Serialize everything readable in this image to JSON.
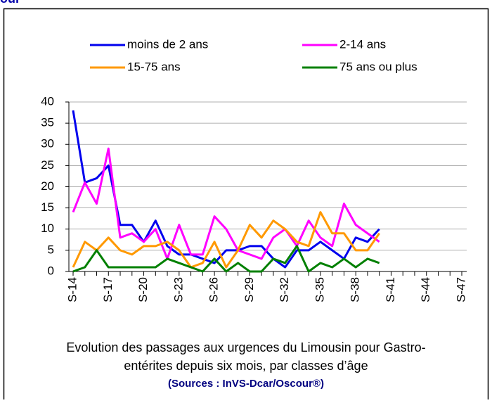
{
  "header": "our",
  "chart_data": {
    "type": "line",
    "categories": [
      "S-14",
      null,
      null,
      "S-17",
      null,
      null,
      "S-20",
      null,
      null,
      "S-23",
      null,
      null,
      "S-26",
      null,
      null,
      "S-29",
      null,
      null,
      "S-32",
      null,
      null,
      "S-35",
      null,
      null,
      "S-38",
      null,
      null,
      "S-41",
      null,
      null,
      "S-44",
      null,
      null,
      "S-47"
    ],
    "series": [
      {
        "name": "moins de 2 ans",
        "color": "#0000ee",
        "values": [
          38,
          21,
          22,
          25,
          11,
          11,
          7,
          12,
          6,
          4,
          4,
          3,
          2,
          5,
          5,
          6,
          6,
          3,
          1,
          5,
          5,
          7,
          5,
          3,
          8,
          7,
          10,
          null,
          null,
          null,
          null,
          null,
          null,
          null
        ]
      },
      {
        "name": "2-14 ans",
        "color": "#ff00ff",
        "values": [
          14,
          21,
          16,
          29,
          8,
          9,
          7,
          10,
          3,
          11,
          4,
          4,
          13,
          10,
          5,
          4,
          3,
          8,
          10,
          6,
          12,
          8,
          6,
          16,
          11,
          9,
          7,
          null,
          null,
          null,
          null,
          null,
          null,
          null
        ]
      },
      {
        "name": "15-75 ans",
        "color": "#ff9900",
        "values": [
          1,
          7,
          5,
          8,
          5,
          4,
          6,
          6,
          7,
          5,
          1,
          2,
          7,
          1,
          5,
          11,
          8,
          12,
          10,
          7,
          6,
          14,
          9,
          9,
          5,
          5,
          9,
          null,
          null,
          null,
          null,
          null,
          null,
          null
        ]
      },
      {
        "name": "75 ans ou plus",
        "color": "#008000",
        "values": [
          0,
          1,
          5,
          1,
          1,
          1,
          1,
          1,
          3,
          2,
          1,
          0,
          3,
          0,
          2,
          0,
          0,
          3,
          2,
          6,
          0,
          2,
          1,
          3,
          1,
          3,
          2,
          null,
          null,
          null,
          null,
          null,
          null,
          null
        ]
      }
    ],
    "ylim": [
      0,
      40
    ],
    "yticks": [
      0,
      5,
      10,
      15,
      20,
      25,
      30,
      35,
      40
    ],
    "grid": true,
    "caption": [
      "Evolution des passages aux urgences du Limousin pour Gastro-",
      "entérites depuis six mois, par classes d’âge"
    ],
    "source": "(Sources : InVS-Dcar/Oscour®)"
  }
}
